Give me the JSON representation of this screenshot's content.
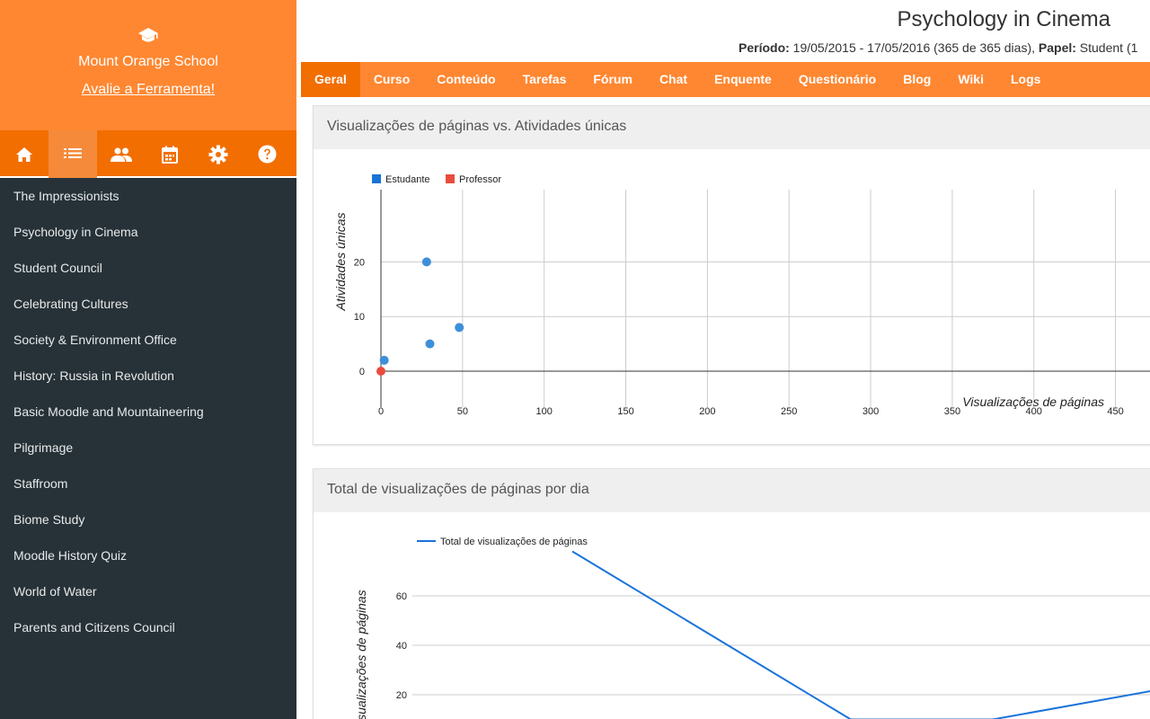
{
  "sidebar": {
    "school_name": "Mount Orange School",
    "rate_link": "Avalie a Ferramenta!",
    "icons": [
      "home-icon",
      "list-icon",
      "people-icon",
      "calendar-icon",
      "gear-icon",
      "help-icon"
    ],
    "active_icon": "list-icon",
    "courses": [
      "The Impressionists",
      "Psychology in Cinema",
      "Student Council",
      "Celebrating Cultures",
      "Society & Environment Office",
      "History: Russia in Revolution",
      "Basic Moodle and Mountaineering",
      "Pilgrimage",
      "Staffroom",
      "Biome Study",
      "Moodle History Quiz",
      "World of Water",
      "Parents and Citizens Council"
    ]
  },
  "header": {
    "title": "Psychology in Cinema",
    "period_label": "Período:",
    "period_value": "19/05/2015 - 17/05/2016 (365 de 365 dias),",
    "role_label": "Papel:",
    "role_value": "Student (1"
  },
  "nav": {
    "tabs": [
      "Geral",
      "Curso",
      "Conteúdo",
      "Tarefas",
      "Fórum",
      "Chat",
      "Enquente",
      "Questionário",
      "Blog",
      "Wiki",
      "Logs"
    ],
    "active": "Geral"
  },
  "colors": {
    "accent": "#ff8731",
    "accent_dark": "#f26e00",
    "sidebar_bg": "#263238",
    "student": "#3d8fd9",
    "teacher": "#e84c3d",
    "line": "#1a73d9"
  },
  "panels": {
    "scatter_title": "Visualizações de páginas vs. Atividades únicas",
    "line_title": "Total de visualizações de páginas por dia"
  },
  "chart_data": [
    {
      "type": "scatter",
      "xlabel": "Visualizações de páginas",
      "ylabel": "Atividades únicas",
      "legend_position": "top-left",
      "grid": true,
      "x_ticks": [
        0,
        50,
        100,
        150,
        200,
        250,
        300,
        350,
        400,
        450
      ],
      "y_ticks": [
        0,
        10,
        20
      ],
      "series": [
        {
          "name": "Estudante",
          "points": [
            [
              28,
              20
            ],
            [
              48,
              8
            ],
            [
              30,
              5
            ],
            [
              2,
              2
            ]
          ]
        },
        {
          "name": "Professor",
          "points": [
            [
              0,
              0
            ]
          ]
        }
      ]
    },
    {
      "type": "line",
      "ylabel": "isualizações de páginas",
      "legend_position": "top-left",
      "grid": true,
      "y_ticks": [
        20,
        40,
        60
      ],
      "series": [
        {
          "name": "Total de visualizações de páginas",
          "values": [
            78,
            10,
            10,
            22
          ]
        }
      ]
    }
  ]
}
